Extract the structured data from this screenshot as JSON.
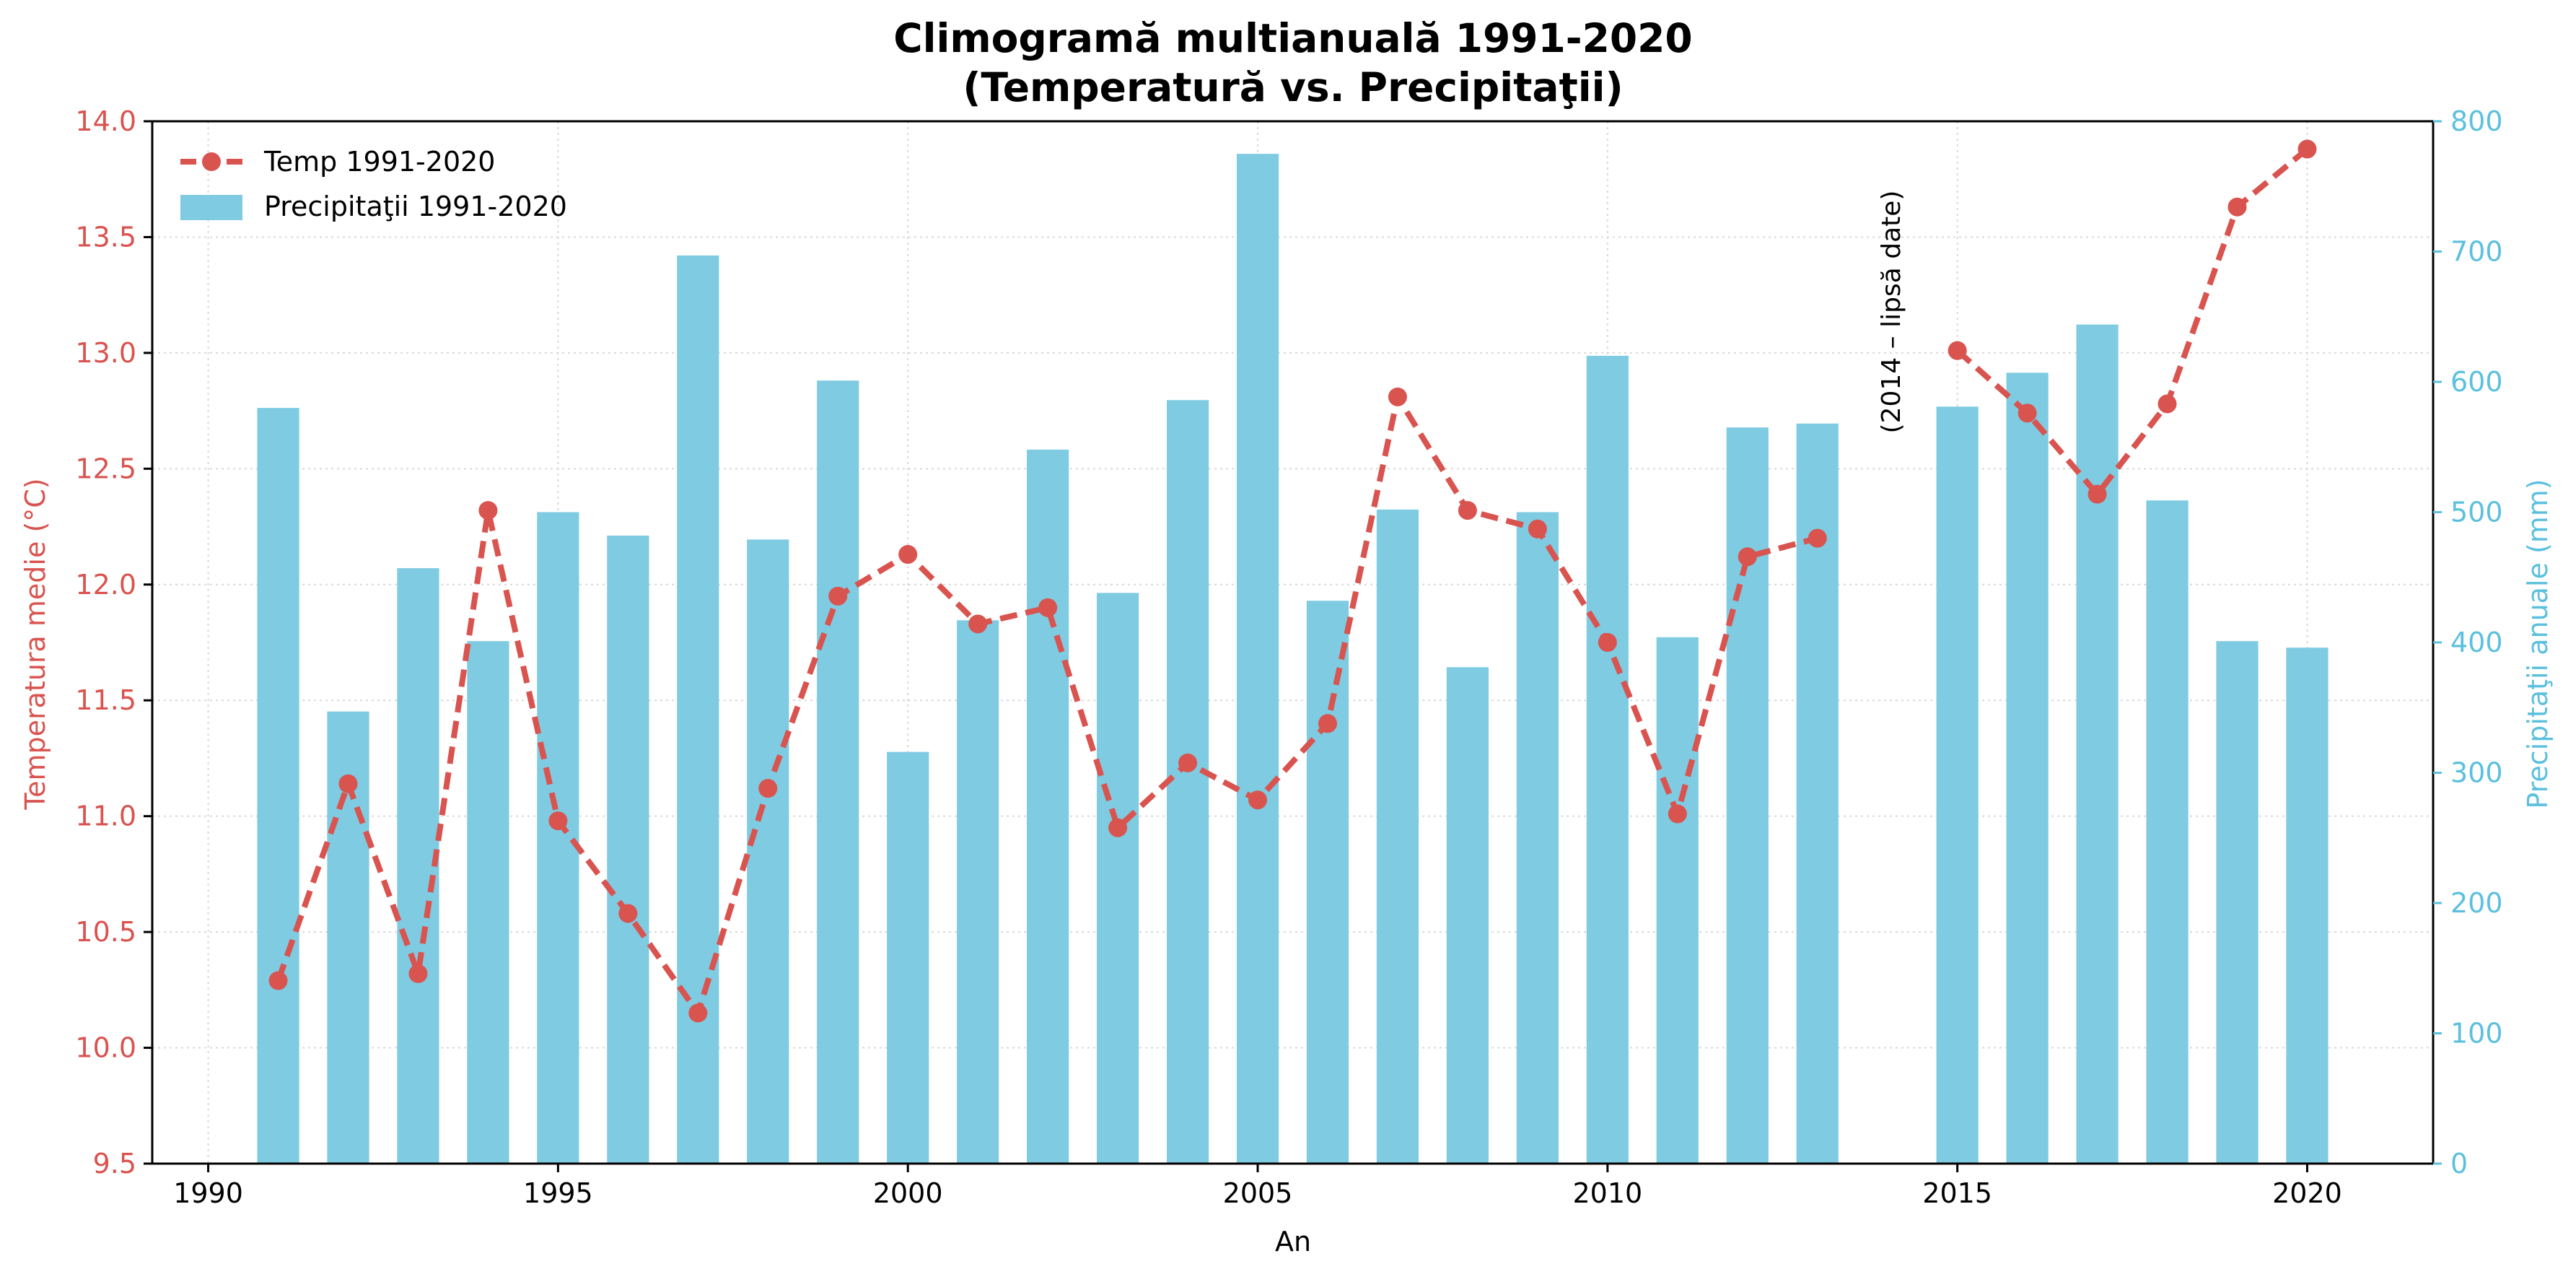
{
  "chart_data": {
    "type": "bar+line",
    "title_line1": "Climogramă multianuală 1991-2020",
    "title_line2": "(Temperatură vs. Precipitaţii)",
    "xlabel": "An",
    "ylabel_left": "Temperatura medie (°C)",
    "ylabel_right": "Precipitaţii anuale (mm)",
    "x_ticks": [
      1990,
      1995,
      2000,
      2005,
      2010,
      2015,
      2020
    ],
    "y_left_ticks": [
      "9.5",
      "10.0",
      "10.5",
      "11.0",
      "11.5",
      "12.0",
      "12.5",
      "13.0",
      "13.5",
      "14.0"
    ],
    "y_right_ticks": [
      "0",
      "100",
      "200",
      "300",
      "400",
      "500",
      "600",
      "700",
      "800"
    ],
    "xlim": [
      1989.2,
      2021.8
    ],
    "ylim_left": [
      9.5,
      14.0
    ],
    "ylim_right": [
      0,
      800
    ],
    "grid": true,
    "legend_position": "top-left",
    "annotation": "(2014 – lipsă date)",
    "colors": {
      "temperature": "#d9534f",
      "precipitation": "#7ecbe2"
    },
    "series": [
      {
        "name": "Temp 1991-2020",
        "kind": "line",
        "axis": "left",
        "style": "dashed, circle markers",
        "x": [
          1991,
          1992,
          1993,
          1994,
          1995,
          1996,
          1997,
          1998,
          1999,
          2000,
          2001,
          2002,
          2003,
          2004,
          2005,
          2006,
          2007,
          2008,
          2009,
          2010,
          2011,
          2012,
          2013
        ],
        "values": [
          10.29,
          11.14,
          10.32,
          12.32,
          10.98,
          10.58,
          10.15,
          11.12,
          11.95,
          12.13,
          11.83,
          11.9,
          10.95,
          11.23,
          11.07,
          11.4,
          12.81,
          12.32,
          12.24,
          11.75,
          11.01,
          12.12,
          12.2
        ],
        "x2": [
          2015,
          2016,
          2017,
          2018,
          2019,
          2020
        ],
        "values2": [
          13.01,
          12.74,
          12.39,
          12.78,
          13.63,
          13.88
        ]
      },
      {
        "name": "Precipitaţii 1991-2020",
        "kind": "bar",
        "axis": "right",
        "x": [
          1991,
          1992,
          1993,
          1994,
          1995,
          1996,
          1997,
          1998,
          1999,
          2000,
          2001,
          2002,
          2003,
          2004,
          2005,
          2006,
          2007,
          2008,
          2009,
          2010,
          2011,
          2012,
          2013,
          2015,
          2016,
          2017,
          2018,
          2019,
          2020
        ],
        "values": [
          580,
          347,
          457,
          401,
          500,
          482,
          697,
          479,
          601,
          316,
          417,
          548,
          438,
          586,
          775,
          432,
          502,
          381,
          500,
          620,
          404,
          565,
          568,
          581,
          607,
          644,
          509,
          401,
          396
        ]
      }
    ]
  }
}
